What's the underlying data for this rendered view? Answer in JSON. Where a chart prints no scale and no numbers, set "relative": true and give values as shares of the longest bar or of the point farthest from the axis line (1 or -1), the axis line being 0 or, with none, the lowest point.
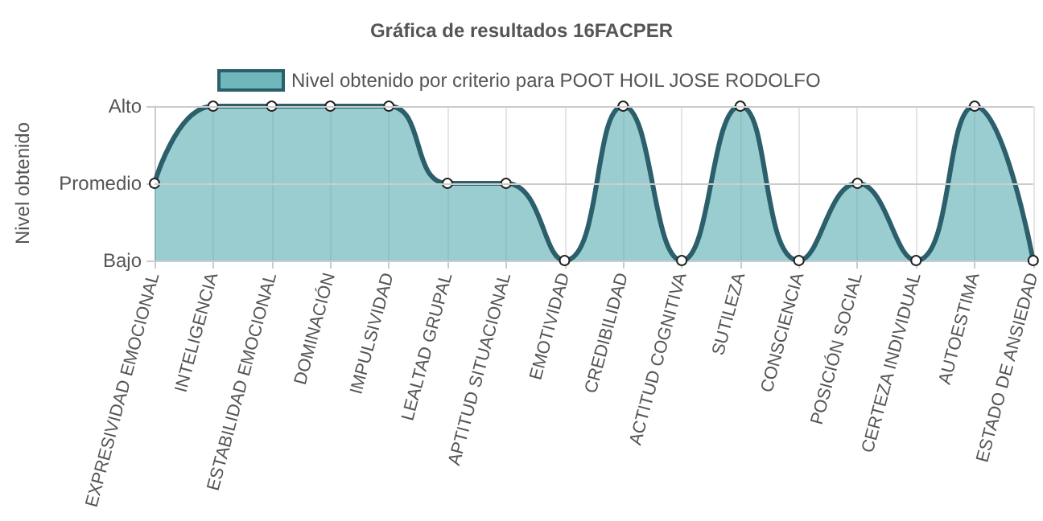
{
  "chart_data": {
    "type": "area",
    "title": "Gráfica de resultados 16FACPER",
    "ylabel": "Nivel obtenido",
    "categories": [
      "EXPRESIVIDAD EMOCIONAL",
      "INTELIGENCIA",
      "ESTABILIDAD EMOCIONAL",
      "DOMINACIÓN",
      "IMPULSIVIDAD",
      "LEALTAD GRUPAL",
      "APTITUD SITUACIONAL",
      "EMOTIVIDAD",
      "CREDIBILIDAD",
      "ACTITUD COGNITIVA",
      "SUTILEZA",
      "CONSCIENCIA",
      "POSICIÓN SOCIAL",
      "CERTEZA INDIVIDUAL",
      "AUTOESTIMA",
      "ESTADO DE ANSIEDAD"
    ],
    "series": [
      {
        "name": "Nivel obtenido por criterio para POOT HOIL JOSE RODOLFO",
        "color": "#2b5f6b",
        "values": [
          0.5,
          1,
          1,
          1,
          1,
          0.5,
          0.5,
          0,
          1,
          0,
          1,
          0,
          0.5,
          0,
          1,
          0
        ]
      }
    ],
    "relative": true,
    "y_categories": [
      "Alto",
      "Promedio",
      "Bajo"
    ],
    "ref_lines": [
      {
        "axis": "y",
        "value": 0.5,
        "color": "#cccccc"
      },
      {
        "axis": "y",
        "value": 1,
        "color": "#cccccc"
      }
    ],
    "grid": "x",
    "legend": "top",
    "marker": "circle",
    "line_style": "solid"
  }
}
